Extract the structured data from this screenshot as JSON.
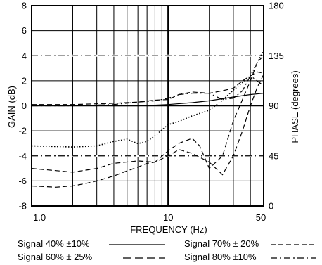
{
  "chart_data": {
    "type": "line",
    "xlabel": "FREQUENCY (Hz)",
    "ylabel": "GAIN (dB)",
    "y2label": "PHASE (degrees)",
    "xscale": "log",
    "xlim": [
      1,
      50
    ],
    "ylim": [
      -8,
      8
    ],
    "y2lim": [
      0,
      180
    ],
    "grid": true,
    "legend_position": "bottom",
    "x_ticks": [
      {
        "value": 1,
        "label": "1.0"
      },
      {
        "value": 10,
        "label": "10"
      },
      {
        "value": 50,
        "label": "50"
      }
    ],
    "y_ticks": [
      {
        "value": -8,
        "label": "-8"
      },
      {
        "value": -6,
        "label": "-6"
      },
      {
        "value": -4,
        "label": "-4"
      },
      {
        "value": -2,
        "label": "-2"
      },
      {
        "value": 0,
        "label": "0"
      },
      {
        "value": 2,
        "label": "2"
      },
      {
        "value": 4,
        "label": "4"
      },
      {
        "value": 6,
        "label": "6"
      },
      {
        "value": 8,
        "label": "8"
      }
    ],
    "y2_ticks": [
      {
        "value": 0,
        "label": "0"
      },
      {
        "value": 45,
        "label": "45"
      },
      {
        "value": 90,
        "label": "90"
      },
      {
        "value": 135,
        "label": "135"
      },
      {
        "value": 180,
        "label": "180"
      }
    ],
    "reference_lines": [
      {
        "axis": "y2",
        "value": 135,
        "style": "dashdot"
      },
      {
        "axis": "y2",
        "value": 45,
        "style": "dashdot"
      }
    ],
    "series": [
      {
        "name": "Signal 40% ±10%",
        "style": "solid",
        "axis": "gain",
        "x": [
          1,
          2,
          4,
          6,
          8,
          10,
          15,
          20,
          30,
          40,
          50
        ],
        "y": [
          0.05,
          0.05,
          0.0,
          0.0,
          0.05,
          0.1,
          0.25,
          0.4,
          0.7,
          0.9,
          1.0
        ]
      },
      {
        "name": "Signal 40% ±10%",
        "style": "dotted",
        "axis": "phase",
        "x": [
          1,
          2,
          3,
          4,
          5,
          6,
          7,
          8,
          10,
          12,
          15,
          20,
          25,
          30,
          40,
          50
        ],
        "y": [
          54,
          53,
          54,
          58,
          60,
          56,
          58,
          63,
          73,
          76,
          81,
          86,
          95,
          104,
          117,
          140
        ]
      },
      {
        "name": "Signal 60% ± 25%",
        "style": "dashed",
        "axis": "gain",
        "x": [
          1,
          1.5,
          2,
          2.5,
          3,
          4,
          5,
          6,
          7,
          8,
          10,
          12,
          15,
          20,
          25,
          30,
          35,
          40,
          45,
          50
        ],
        "y": [
          -6.4,
          -6.5,
          -6.4,
          -6.2,
          -6.0,
          -5.6,
          -5.2,
          -4.9,
          -4.6,
          -4.5,
          -4.0,
          -3.5,
          -3.8,
          -4.5,
          -5.5,
          -4.0,
          -2.0,
          0.0,
          1.5,
          2.5
        ]
      },
      {
        "name": "Signal 60% ± 25%",
        "style": "dashed",
        "axis": "gain",
        "x": [
          1,
          2,
          4,
          6,
          8,
          10,
          12,
          15,
          20,
          25,
          30,
          35,
          40,
          45,
          50
        ],
        "y": [
          0.1,
          0.1,
          0.2,
          0.3,
          0.45,
          0.5,
          0.9,
          1.1,
          1.0,
          1.2,
          1.4,
          2.0,
          2.4,
          2.7,
          2.6
        ]
      },
      {
        "name": "Signal 70% ± 20%",
        "style": "dashed",
        "axis": "gain",
        "x": [
          1,
          2,
          3,
          4,
          6,
          8,
          10,
          12,
          15,
          17,
          20,
          25,
          30,
          35,
          40,
          45,
          50
        ],
        "y": [
          -5.0,
          -5.3,
          -5.0,
          -4.6,
          -4.4,
          -4.5,
          -3.6,
          -3.0,
          -2.6,
          -3.2,
          -5.0,
          -4.0,
          -1.2,
          0.5,
          2.0,
          3.5,
          4.0
        ]
      },
      {
        "name": "Signal 80% ±10%",
        "style": "dashdot",
        "axis": "gain",
        "x": [
          1,
          2,
          4,
          6,
          8,
          10,
          12,
          15,
          20,
          25,
          30,
          35,
          40,
          50
        ],
        "y": [
          0.0,
          0.0,
          0.1,
          0.3,
          0.4,
          0.6,
          0.9,
          1.0,
          1.0,
          0.5,
          0.6,
          1.2,
          2.4,
          1.6
        ]
      }
    ],
    "legend": [
      {
        "label": "Signal 40% ±10%",
        "style": "solid"
      },
      {
        "label": "Signal 70% ± 20%",
        "style": "dashed"
      },
      {
        "label": "Signal 60% ± 25%",
        "style": "longdash"
      },
      {
        "label": "Signal 80% ±10%",
        "style": "dashdot"
      }
    ]
  }
}
